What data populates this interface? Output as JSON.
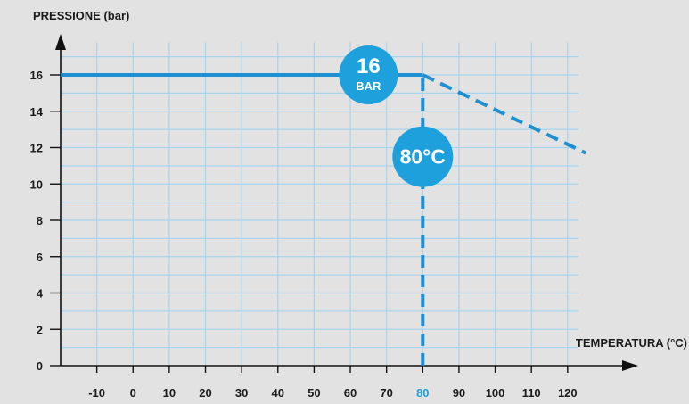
{
  "chart_data": {
    "type": "line",
    "ylabel": "PRESSIONE (bar)",
    "xlabel": "TEMPERATURA (°C)",
    "x_ticks": [
      -10,
      0,
      10,
      20,
      30,
      40,
      50,
      60,
      70,
      80,
      90,
      100,
      110,
      120
    ],
    "y_ticks": [
      0,
      2,
      4,
      6,
      8,
      10,
      12,
      14,
      16
    ],
    "xlim": [
      -20,
      125
    ],
    "ylim": [
      0,
      18
    ],
    "grid": true,
    "highlight_x_tick": 80,
    "series": [
      {
        "style": "solid",
        "points": [
          [
            -20,
            16
          ],
          [
            80,
            16
          ]
        ]
      },
      {
        "style": "dashed",
        "points": [
          [
            80,
            16
          ],
          [
            125,
            11.7
          ]
        ]
      },
      {
        "style": "dashed",
        "points": [
          [
            80,
            0
          ],
          [
            80,
            16
          ]
        ]
      }
    ],
    "annotations": [
      {
        "line1": "16",
        "line2": "BAR",
        "x": 65,
        "y": 16
      },
      {
        "line1": "80°C",
        "x": 80,
        "y": 11.5
      }
    ],
    "colors": {
      "line": "#1e8fd0",
      "grid": "#a8d4ee",
      "axis": "#111111",
      "badge": "#1ea0dc",
      "highlight_tick": "#1ea0dc",
      "background": "#e2e2e2"
    }
  }
}
